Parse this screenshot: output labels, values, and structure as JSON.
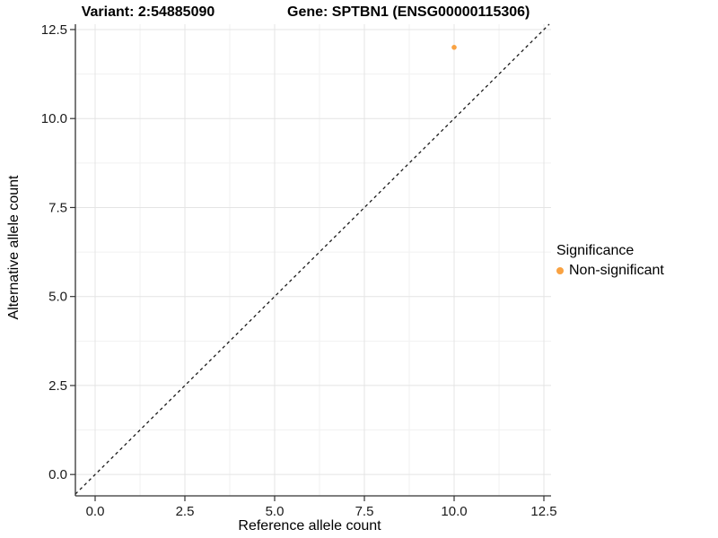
{
  "header": {
    "variant_title": "Variant: 2:54885090",
    "gene_title": "Gene: SPTBN1 (ENSG00000115306)"
  },
  "chart_data": {
    "type": "scatter",
    "xlabel": "Reference allele count",
    "ylabel": "Alternative allele count",
    "x_ticks": [
      0.0,
      2.5,
      5.0,
      7.5,
      10.0,
      12.5
    ],
    "y_ticks": [
      0.0,
      2.5,
      5.0,
      7.5,
      10.0,
      12.5
    ],
    "x_minor_ticks": [
      1.25,
      3.75,
      6.25,
      8.75,
      11.25
    ],
    "y_minor_ticks": [
      1.25,
      3.75,
      6.25,
      8.75,
      11.25
    ],
    "xlim": [
      -0.55,
      12.7
    ],
    "ylim": [
      -0.6,
      12.65
    ],
    "tick_decimals": 1,
    "grid": "major+minor",
    "series": [
      {
        "name": "Non-significant",
        "color": "#F9A242",
        "points": [
          {
            "x": 10,
            "y": 12
          }
        ]
      }
    ],
    "reference_line": {
      "slope": 1,
      "intercept": 0,
      "style": "dashed",
      "color": "#1A1A1A"
    },
    "legend": {
      "title": "Significance",
      "position": "right",
      "items": [
        {
          "label": "Non-significant",
          "color": "#F9A242"
        }
      ]
    },
    "colors": {
      "background": "#FFFFFF",
      "major_grid": "#E4E4E4",
      "minor_grid": "#F1F1F1",
      "axis_line": "#333333",
      "tick_text": "#1A1A1A"
    }
  }
}
